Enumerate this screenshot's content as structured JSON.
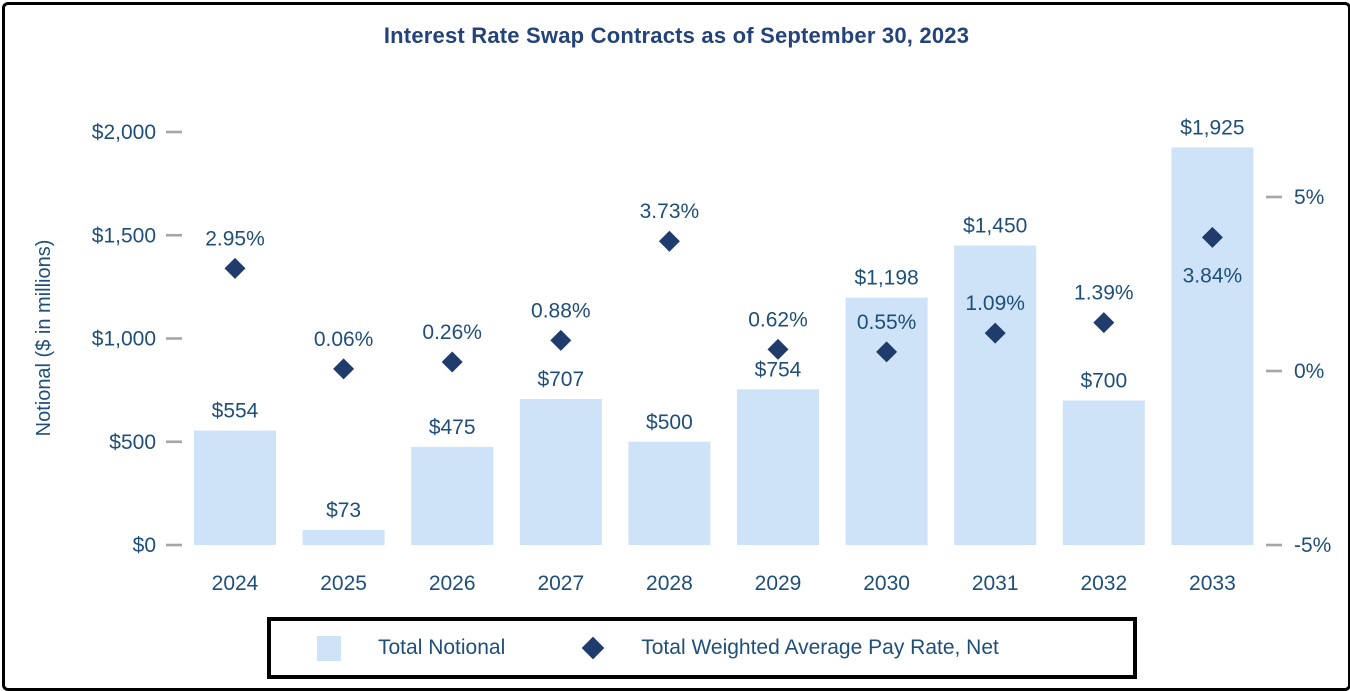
{
  "chart_data": {
    "type": "combo",
    "title": "Interest Rate Swap Contracts as of September 30, 2023",
    "categories": [
      "2024",
      "2025",
      "2026",
      "2027",
      "2028",
      "2029",
      "2030",
      "2031",
      "2032",
      "2033"
    ],
    "series": [
      {
        "name": "Total Notional",
        "type": "bar",
        "axis": "left",
        "values": [
          554,
          73,
          475,
          707,
          500,
          754,
          1198,
          1450,
          700,
          1925
        ],
        "labels": [
          "$554",
          "$73",
          "$475",
          "$707",
          "$500",
          "$754",
          "$1,198",
          "$1,450",
          "$700",
          "$1,925"
        ]
      },
      {
        "name": "Total Weighted Average Pay Rate, Net",
        "type": "scatter",
        "marker": "diamond",
        "axis": "right",
        "values": [
          2.95,
          0.06,
          0.26,
          0.88,
          3.73,
          0.62,
          0.55,
          1.09,
          1.39,
          3.84
        ],
        "labels": [
          "2.95%",
          "0.06%",
          "0.26%",
          "0.88%",
          "3.73%",
          "0.62%",
          "0.55%",
          "1.09%",
          "1.39%",
          "3.84%"
        ],
        "label_positions": [
          "above",
          "above",
          "above",
          "above",
          "above",
          "above",
          "above",
          "above",
          "above",
          "below"
        ]
      }
    ],
    "left_axis": {
      "title": "Notional ($ in millions)",
      "min": 0,
      "max": 2000,
      "ticks": [
        {
          "label": "$2,000",
          "value": 2000
        },
        {
          "label": "$1,500",
          "value": 1500
        },
        {
          "label": "$1,000",
          "value": 1000
        },
        {
          "label": "$500",
          "value": 500
        },
        {
          "label": "$0",
          "value": 0
        }
      ]
    },
    "right_axis": {
      "ticks": [
        {
          "label": "5%",
          "value": 5
        },
        {
          "label": "0%",
          "value": 0
        },
        {
          "label": "-5%",
          "value": -5
        }
      ]
    },
    "legend": {
      "position": "bottom",
      "items": [
        {
          "label": "Total Notional",
          "marker": "square"
        },
        {
          "label": "Total Weighted Average Pay Rate, Net",
          "marker": "diamond"
        }
      ]
    },
    "grid": false
  },
  "colors": {
    "bar": "#CEE3F7",
    "diamond": "#1F3C6C",
    "text": "#1F4E79",
    "title": "#24437B",
    "tick": "#A6A6A6",
    "legend_border": "#000000"
  }
}
